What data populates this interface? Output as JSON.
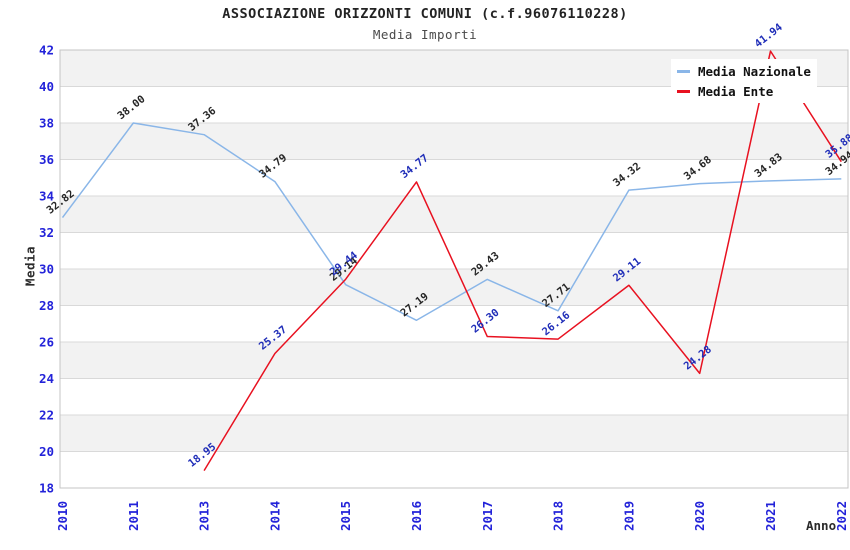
{
  "chart_data": {
    "type": "line",
    "title": "ASSOCIAZIONE ORIZZONTI COMUNI (c.f.96076110228)",
    "subtitle": "Media Importi",
    "xlabel": "Anno",
    "ylabel": "Media",
    "ylim": [
      18,
      42
    ],
    "ytick_step": 2,
    "grid": "horizontal-bands",
    "legend_position": "top-right",
    "categories": [
      "2010",
      "2011",
      "2013",
      "2014",
      "2015",
      "2016",
      "2017",
      "2018",
      "2019",
      "2020",
      "2021",
      "2022"
    ],
    "series": [
      {
        "name": "Media Nazionale",
        "color": "#8ab6e8",
        "label_color": "#262626",
        "values": [
          32.82,
          38.0,
          37.36,
          34.79,
          29.14,
          27.19,
          29.43,
          27.71,
          34.32,
          34.68,
          34.83,
          34.94
        ]
      },
      {
        "name": "Media Ente",
        "color": "#e81120",
        "label_color": "#1f2db8",
        "values": [
          null,
          null,
          18.95,
          25.37,
          29.44,
          34.77,
          26.3,
          26.16,
          29.11,
          24.28,
          41.94,
          35.88
        ]
      }
    ],
    "colors": {
      "band_gray": "#f2f2f2",
      "gridline": "#d9d9d9",
      "plot_border": "#c4c4c4",
      "tick_label": "#2323d9"
    }
  }
}
